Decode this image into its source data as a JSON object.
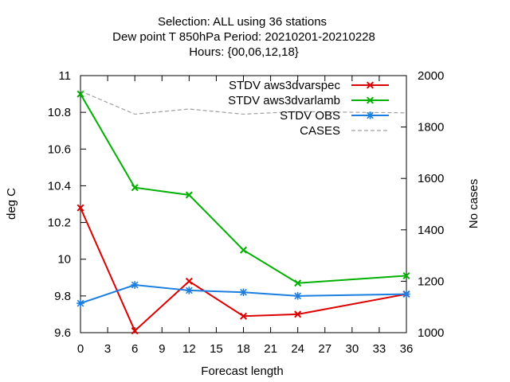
{
  "title": {
    "line1": "Selection: ALL using    36 stations",
    "line2": "Dew point T 850hPa   Period: 20210201-20210228",
    "line3": "Hours: {00,06,12,18}"
  },
  "chart_data": {
    "type": "line",
    "xlabel": "Forecast length",
    "ylabel": "deg C",
    "y2label": "No cases",
    "xlim": [
      0,
      36
    ],
    "ylim": [
      9.6,
      11
    ],
    "y2lim": [
      1000,
      2000
    ],
    "x_ticks": [
      "0",
      "3",
      "6",
      "9",
      "12",
      "15",
      "18",
      "21",
      "24",
      "27",
      "30",
      "33",
      "36"
    ],
    "y_ticks": [
      "9.6",
      "9.8",
      "10",
      "10.2",
      "10.4",
      "10.6",
      "10.8",
      "11"
    ],
    "y2_ticks": [
      "1000",
      "1200",
      "1400",
      "1600",
      "1800",
      "2000"
    ],
    "grid": false,
    "legend_position": "top-right",
    "series": [
      {
        "name": "STDV aws3dvarspec",
        "axis": "y",
        "color": "#dd0000",
        "marker": "x",
        "x": [
          0,
          6,
          12,
          18,
          24,
          36
        ],
        "values": [
          10.28,
          9.61,
          9.88,
          9.69,
          9.7,
          9.81
        ]
      },
      {
        "name": "STDV aws3dvarlamb",
        "axis": "y",
        "color": "#00b000",
        "marker": "x",
        "x": [
          0,
          6,
          12,
          18,
          24,
          36
        ],
        "values": [
          10.9,
          10.39,
          10.35,
          10.05,
          9.87,
          9.91
        ]
      },
      {
        "name": "STDV OBS",
        "axis": "y",
        "color": "#1a7fe0",
        "marker": "x",
        "x": [
          0,
          6,
          12,
          18,
          24,
          36
        ],
        "values": [
          9.76,
          9.86,
          9.83,
          9.82,
          9.8,
          9.81
        ]
      },
      {
        "name": "CASES",
        "axis": "y2",
        "color": "#a0a0a0",
        "dashed": true,
        "x": [
          0,
          6,
          12,
          18,
          24,
          36
        ],
        "values": [
          1940,
          1850,
          1870,
          1850,
          1860,
          1855
        ]
      }
    ]
  }
}
